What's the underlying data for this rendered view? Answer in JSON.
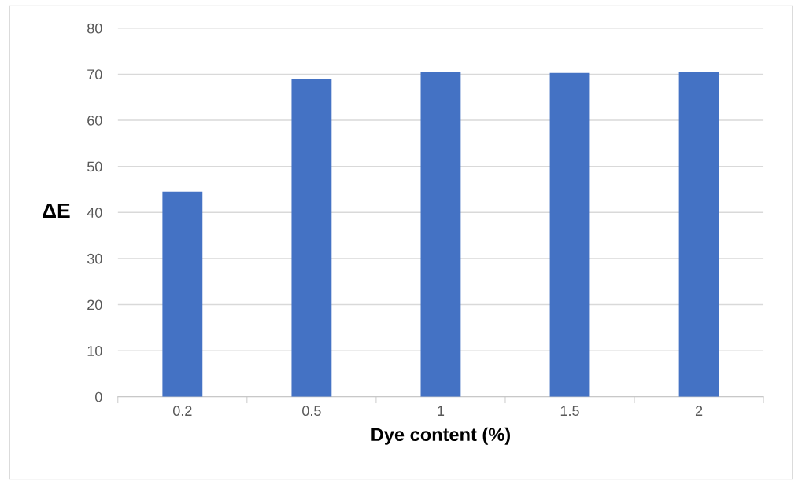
{
  "chart_data": {
    "type": "bar",
    "xlabel": "Dye content (%)",
    "ylabel": "ΔE",
    "categories": [
      "0.2",
      "0.5",
      "1",
      "1.5",
      "2"
    ],
    "values": [
      44.5,
      68.9,
      70.5,
      70.3,
      70.5
    ],
    "color": "#4472c4",
    "ylim": [
      0,
      80
    ],
    "yticks": [
      0,
      10,
      20,
      30,
      40,
      50,
      60,
      70,
      80
    ],
    "grid": "y",
    "legend": false
  }
}
